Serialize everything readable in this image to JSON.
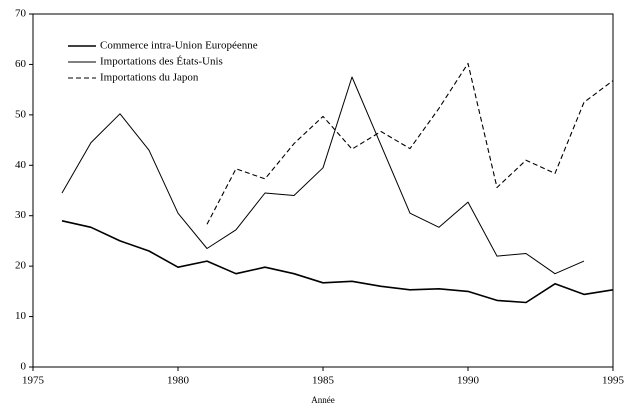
{
  "chart_data": {
    "type": "line",
    "x_label": "Année",
    "x": [
      1976,
      1977,
      1978,
      1979,
      1980,
      1981,
      1982,
      1983,
      1984,
      1985,
      1986,
      1987,
      1988,
      1989,
      1990,
      1991,
      1992,
      1993,
      1994,
      1995
    ],
    "series": [
      {
        "name": "Commerce intra-Union Européenne",
        "color": "#000000",
        "line_style": "solid",
        "values": [
          29,
          27.7,
          25,
          23,
          19.8,
          21,
          18.5,
          19.8,
          18.5,
          16.7,
          17,
          16,
          15.3,
          15.5,
          15,
          13.2,
          12.8,
          16.5,
          14.4,
          15.3
        ]
      },
      {
        "name": "Importations des États-Unis",
        "color": "#000000",
        "line_style": "solid",
        "values": [
          34.5,
          44.5,
          50.2,
          43,
          30.5,
          23.5,
          27.2,
          34.5,
          34,
          39.5,
          57.5,
          44,
          30.5,
          27.7,
          32.7,
          22,
          22.5,
          18.5,
          21,
          null
        ]
      },
      {
        "name": "Importations du Japon",
        "color": "#000000",
        "line_style": "dashed",
        "values": [
          null,
          null,
          null,
          null,
          null,
          28.3,
          39.3,
          37.3,
          44.3,
          49.7,
          43.2,
          46.7,
          43.3,
          51.3,
          60.2,
          35.6,
          41,
          38.4,
          52.5,
          56.8
        ]
      }
    ],
    "xlim": [
      1975,
      1995
    ],
    "xticks": [
      1975,
      1980,
      1985,
      1990,
      1995
    ],
    "ylim": [
      0,
      70
    ],
    "yticks": [
      0,
      10,
      20,
      30,
      40,
      50,
      60,
      70
    ],
    "legend": "upper left"
  }
}
